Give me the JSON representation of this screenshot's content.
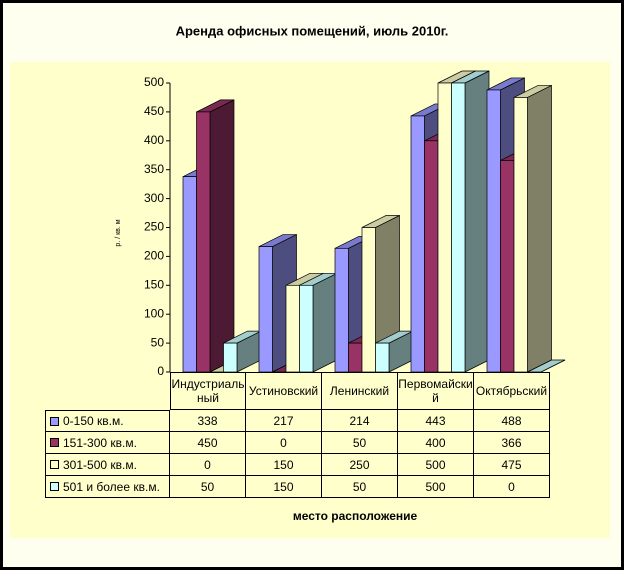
{
  "chart_data": {
    "type": "bar3d",
    "title": "Аренда офисных помещений, июль 2010г.",
    "y_label": "р. / кв. м",
    "x_label": "место расположение",
    "categories": [
      "Индустриальный",
      "Устиновский",
      "Ленинский",
      "Первомайский",
      "Октябрьский"
    ],
    "series": [
      {
        "name": "0-150 кв.м.",
        "color": "#9999ff",
        "values": [
          338,
          217,
          214,
          443,
          488
        ]
      },
      {
        "name": "151-300 кв.м.",
        "color": "#993366",
        "values": [
          450,
          0,
          50,
          400,
          366
        ]
      },
      {
        "name": "301-500 кв.м.",
        "color": "#ffffcc",
        "values": [
          0,
          150,
          250,
          500,
          475
        ]
      },
      {
        "name": "501 и более кв.м.",
        "color": "#ccffff",
        "values": [
          50,
          150,
          50,
          500,
          0
        ]
      }
    ],
    "ylim": [
      0,
      500
    ],
    "yticks": [
      0,
      50,
      100,
      150,
      200,
      250,
      300,
      350,
      400,
      450,
      500
    ]
  }
}
